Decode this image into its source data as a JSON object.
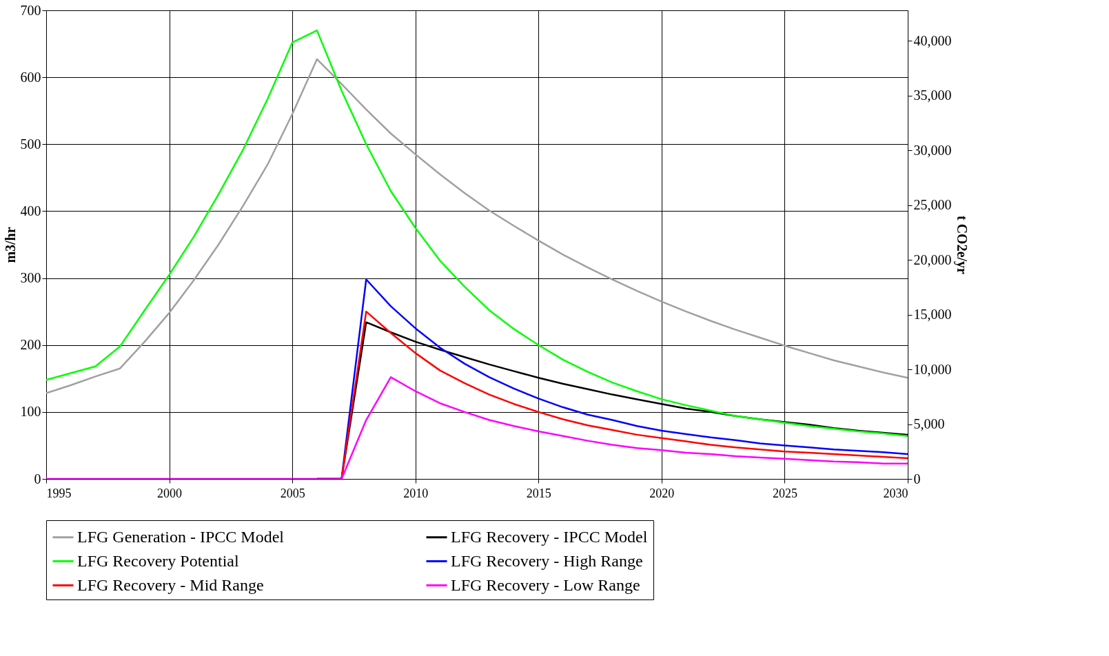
{
  "chart_data": {
    "type": "line",
    "ylabel": "m3/hr",
    "y2label": "t CO2e/yr",
    "x": [
      1995,
      1996,
      1997,
      1998,
      1999,
      2000,
      2001,
      2002,
      2003,
      2004,
      2005,
      2006,
      2007,
      2008,
      2009,
      2010,
      2011,
      2012,
      2013,
      2014,
      2015,
      2016,
      2017,
      2018,
      2019,
      2020,
      2021,
      2022,
      2023,
      2024,
      2025,
      2026,
      2027,
      2028,
      2029,
      2030
    ],
    "xlim": [
      1995,
      2030
    ],
    "xticks": [
      1995,
      2000,
      2005,
      2010,
      2015,
      2020,
      2025,
      2030
    ],
    "ylim": [
      0,
      700
    ],
    "yticks": [
      0,
      100,
      200,
      300,
      400,
      500,
      600,
      700
    ],
    "y2lim": [
      0,
      42770
    ],
    "y2ticks": [
      0,
      {
        "value": 5000,
        "label": "5,000"
      },
      {
        "value": 10000,
        "label": "10,000"
      },
      {
        "value": 15000,
        "label": "15,000"
      },
      {
        "value": 20000,
        "label": "20,000"
      },
      {
        "value": 25000,
        "label": "25,000"
      },
      {
        "value": 30000,
        "label": "30,000"
      },
      {
        "value": 35000,
        "label": "35,000"
      },
      {
        "value": 40000,
        "label": "40,000"
      }
    ],
    "grid": true,
    "legend": "bottom",
    "marker": "none",
    "line_style": "solid",
    "series": [
      {
        "name": "LFG Generation - IPCC Model",
        "color": "#a0a0a0",
        "values": [
          128,
          140,
          153,
          165,
          205,
          248,
          297,
          350,
          408,
          470,
          545,
          627,
          590,
          552,
          516,
          485,
          455,
          427,
          401,
          378,
          356,
          335,
          316,
          298,
          281,
          265,
          250,
          236,
          223,
          211,
          199,
          188,
          177,
          168,
          159,
          151
        ]
      },
      {
        "name": "LFG Recovery - IPCC Model",
        "color": "#000000",
        "values": [
          null,
          null,
          null,
          null,
          null,
          null,
          null,
          null,
          null,
          null,
          null,
          0,
          0,
          234,
          219,
          205,
          193,
          182,
          171,
          161,
          151,
          142,
          134,
          126,
          119,
          112,
          105,
          100,
          94,
          89,
          85,
          81,
          76,
          72,
          69,
          66
        ]
      },
      {
        "name": "LFG Recovery Potential",
        "color": "#00ff00",
        "values": [
          148,
          158,
          168,
          198,
          252,
          305,
          362,
          425,
          492,
          568,
          652,
          670,
          580,
          500,
          430,
          375,
          326,
          287,
          252,
          224,
          200,
          178,
          160,
          144,
          131,
          119,
          110,
          102,
          94,
          89,
          84,
          79,
          75,
          71,
          68,
          64
        ]
      },
      {
        "name": "LFG Recovery - High Range",
        "color": "#0000ff",
        "values": [
          null,
          null,
          null,
          null,
          null,
          null,
          null,
          null,
          null,
          null,
          null,
          0,
          0,
          298,
          258,
          225,
          196,
          172,
          152,
          135,
          120,
          107,
          96,
          88,
          79,
          72,
          67,
          62,
          58,
          53,
          50,
          47,
          44,
          42,
          40,
          37
        ]
      },
      {
        "name": "LFG Recovery - Mid Range",
        "color": "#ff0000",
        "values": [
          null,
          null,
          null,
          null,
          null,
          null,
          null,
          null,
          null,
          null,
          null,
          0,
          0,
          250,
          218,
          188,
          162,
          143,
          126,
          112,
          100,
          89,
          80,
          73,
          66,
          61,
          56,
          51,
          47,
          44,
          41,
          39,
          37,
          35,
          33,
          31
        ]
      },
      {
        "name": "LFG Recovery - Low Range",
        "color": "#ff00ff",
        "values": [
          0,
          0,
          0,
          0,
          0,
          0,
          0,
          0,
          0,
          0,
          0,
          0,
          0,
          88,
          152,
          131,
          113,
          100,
          88,
          79,
          71,
          64,
          57,
          51,
          46,
          43,
          39,
          37,
          34,
          32,
          30,
          28,
          26,
          25,
          23,
          23
        ]
      }
    ]
  }
}
